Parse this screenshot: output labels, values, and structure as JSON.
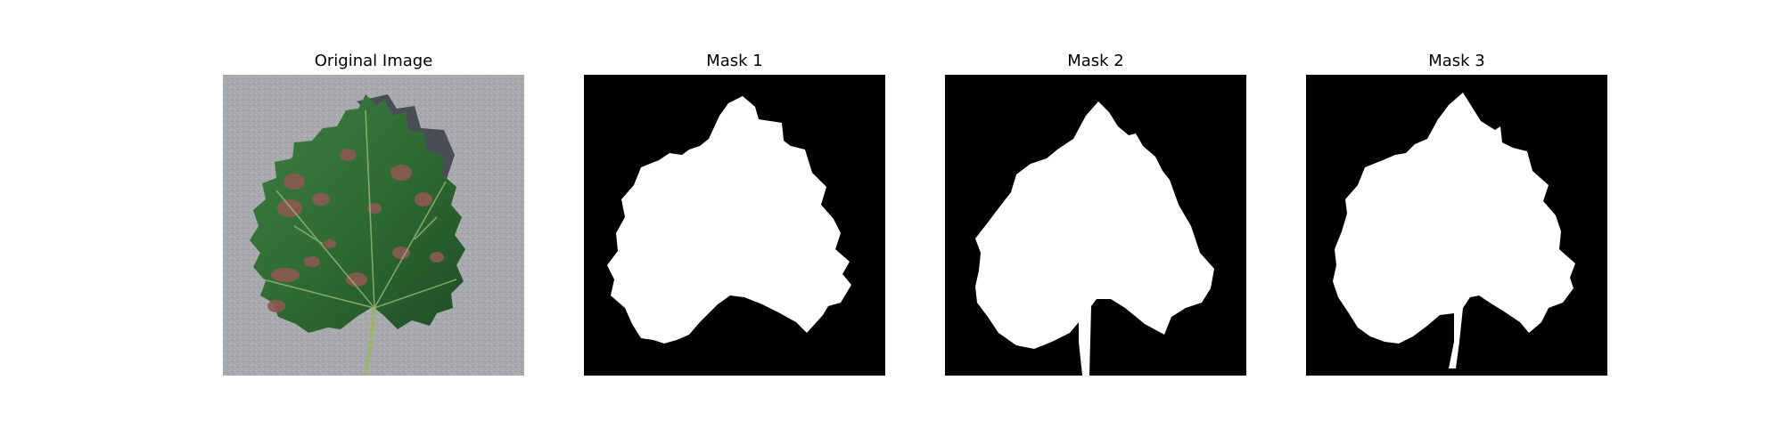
{
  "figure": {
    "panels": [
      {
        "title": "Original Image"
      },
      {
        "title": "Mask 1"
      },
      {
        "title": "Mask 2"
      },
      {
        "title": "Mask 3"
      }
    ]
  },
  "colors": {
    "background": "#ffffff",
    "mask_background": "#000000",
    "mask_foreground": "#ffffff",
    "leaf_green": "#2f6b33",
    "lesion_red": "#8c5a52",
    "photo_backdrop": "#a7a9ad"
  }
}
